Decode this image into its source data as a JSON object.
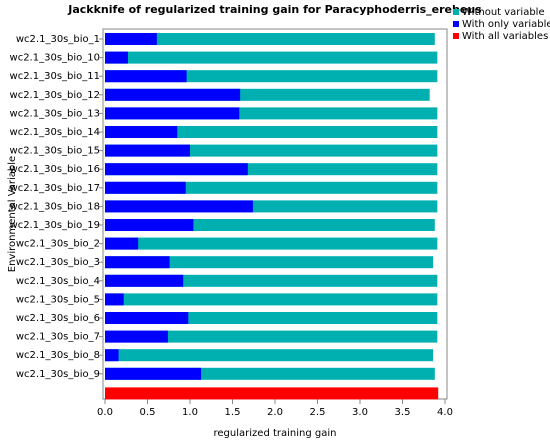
{
  "chart_data": {
    "type": "jackknife",
    "title": "Jackknife of regularized training gain for Paracyphoderris_erebeus",
    "x_label": "regularized training gain",
    "y_label": "Environmental Variable",
    "categories": [
      "wc2.1_30s_bio_1",
      "wc2.1_30s_bio_10",
      "wc2.1_30s_bio_11",
      "wc2.1_30s_bio_12",
      "wc2.1_30s_bio_13",
      "wc2.1_30s_bio_14",
      "wc2.1_30s_bio_15",
      "wc2.1_30s_bio_16",
      "wc2.1_30s_bio_17",
      "wc2.1_30s_bio_18",
      "wc2.1_30s_bio_19",
      "wc2.1_30s_bio_2",
      "wc2.1_30s_bio_3",
      "wc2.1_30s_bio_4",
      "wc2.1_30s_bio_5",
      "wc2.1_30s_bio_6",
      "wc2.1_30s_bio_7",
      "wc2.1_30s_bio_8",
      "wc2.1_30s_bio_9"
    ],
    "series": [
      {
        "name": "Without variable",
        "color": "#00b0b0",
        "values": [
          3.88,
          3.91,
          3.91,
          3.82,
          3.91,
          3.91,
          3.91,
          3.91,
          3.91,
          3.91,
          3.88,
          3.91,
          3.86,
          3.91,
          3.91,
          3.91,
          3.91,
          3.86,
          3.88
        ]
      },
      {
        "name": "With only variable",
        "color": "#0000ff",
        "values": [
          0.61,
          0.27,
          0.96,
          1.59,
          1.58,
          0.85,
          1.0,
          1.68,
          0.95,
          1.74,
          1.04,
          0.39,
          0.76,
          0.92,
          0.22,
          0.98,
          0.74,
          0.16,
          1.13
        ]
      }
    ],
    "all_variables": {
      "name": "With all variables",
      "color": "#ff0000",
      "value": 3.92
    },
    "xlim": [
      0,
      4.0
    ],
    "xticks": [
      {
        "value": 0,
        "label": "0.0"
      },
      0.5,
      {
        "value": 1,
        "label": "1.0"
      },
      1.5,
      {
        "value": 2,
        "label": "2.0"
      },
      2.5,
      {
        "value": 3,
        "label": "3.0"
      },
      3.5,
      {
        "value": 4,
        "label": "4.0"
      }
    ]
  }
}
